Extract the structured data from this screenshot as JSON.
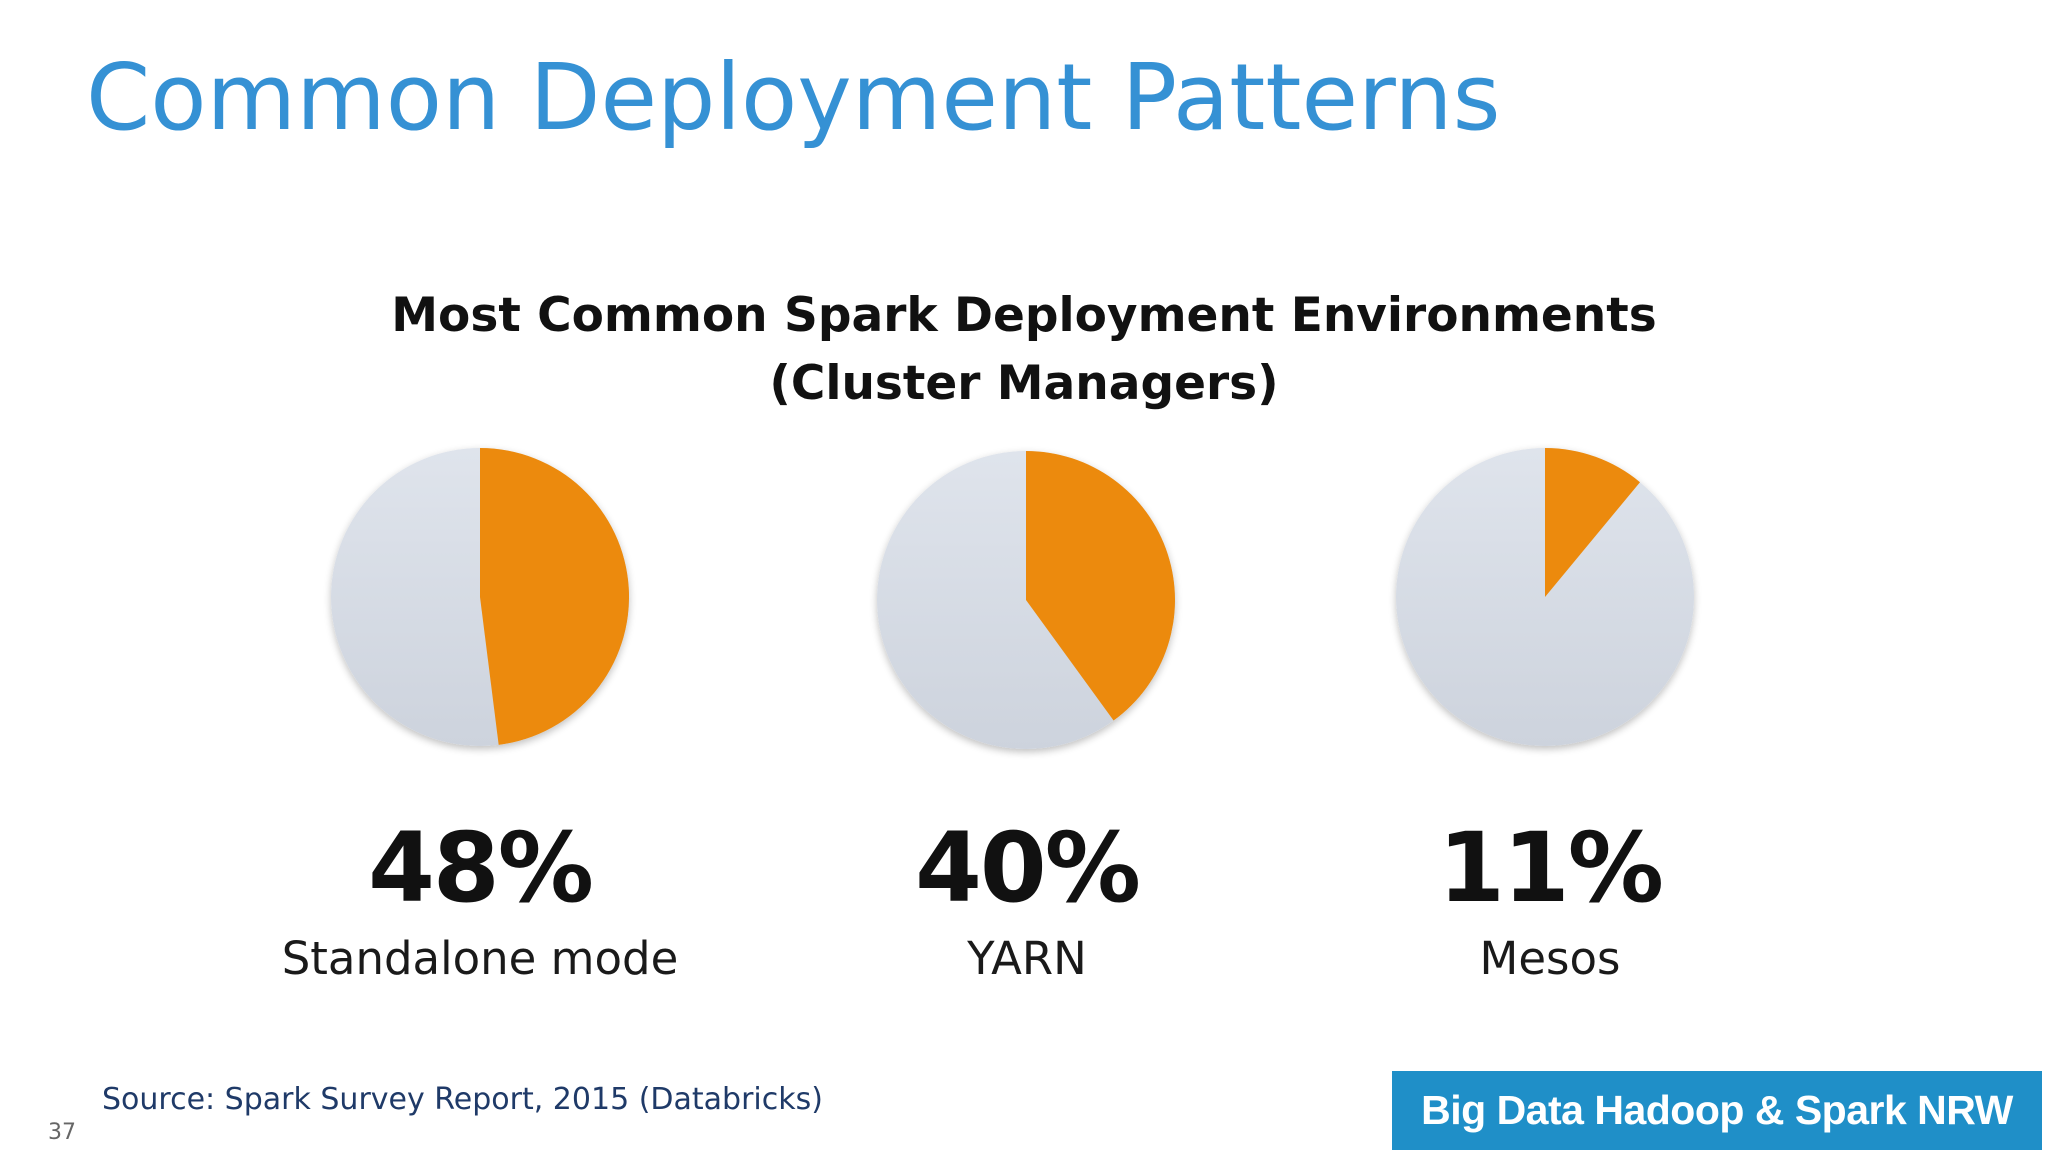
{
  "slide": {
    "title": "Common Deployment Patterns",
    "source": "Source: Spark Survey Report, 2015 (Databricks)",
    "page_number": "37",
    "brand": "Big Data Hadoop & Spark NRW"
  },
  "chart_data": {
    "type": "pie",
    "title_lines": [
      "Most Common Spark Deployment Environments",
      "(Cluster Managers)"
    ],
    "pies": [
      {
        "category": "Standalone mode",
        "value": 48,
        "label": "48%"
      },
      {
        "category": "YARN",
        "value": 40,
        "label": "40%"
      },
      {
        "category": "Mesos",
        "value": 11,
        "label": "11%"
      }
    ],
    "colors": {
      "highlight": "#ec8a0c",
      "rest": "#d8dee8"
    }
  }
}
